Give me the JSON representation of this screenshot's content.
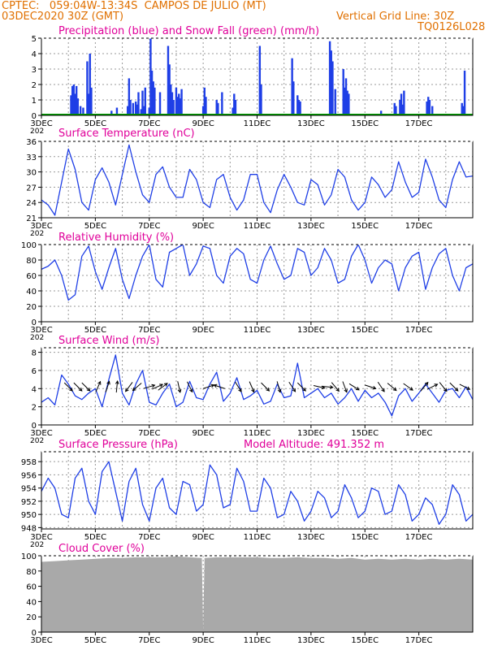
{
  "header": {
    "line1": "CPTEC:   059:04W-13:34S  CAMPOS DE JULIO (MT)",
    "line2": "03DEC2020 30Z (GMT)",
    "grid_note": "Vertical Grid Line: 30Z",
    "code": "TQ0126L028"
  },
  "colors": {
    "header": "#e07000",
    "title": "#e0009a",
    "line": "#1f3fe6",
    "precip": "#1f3fe6",
    "snow": "#00a000",
    "cloud": "#a9a9a9",
    "arrow": "#000000",
    "grid": "#999999"
  },
  "x_axis": {
    "tick_labels": [
      "3DEC",
      "5DEC",
      "7DEC",
      "9DEC",
      "11DEC",
      "13DEC",
      "15DEC",
      "17DEC"
    ],
    "tick_days": [
      0,
      2,
      4,
      6,
      8,
      10,
      12,
      14
    ],
    "cut_label": "202",
    "start_day": 0,
    "end_day": 16
  },
  "chart_data": [
    {
      "id": "precip",
      "type": "bar",
      "title": "Precipitation (blue) and Snow Fall (green) (mm/h)",
      "ylim": [
        0,
        5
      ],
      "yticks": [
        0,
        1,
        2,
        3,
        4,
        5
      ],
      "grid": true,
      "series": [
        {
          "name": "Precipitation",
          "x": [
            1.1,
            1.15,
            1.2,
            1.25,
            1.3,
            1.35,
            1.45,
            1.55,
            1.7,
            1.75,
            1.8,
            1.85,
            2.6,
            2.8,
            3.2,
            3.25,
            3.3,
            3.4,
            3.5,
            3.55,
            3.6,
            3.7,
            3.75,
            3.8,
            3.85,
            4.0,
            4.05,
            4.1,
            4.15,
            4.2,
            4.4,
            4.7,
            4.75,
            4.8,
            4.85,
            4.9,
            5.0,
            5.05,
            5.1,
            5.15,
            5.2,
            6.0,
            6.05,
            6.1,
            6.5,
            6.55,
            6.7,
            7.1,
            7.15,
            7.2,
            8.1,
            8.15,
            9.3,
            9.35,
            9.5,
            9.55,
            9.6,
            10.7,
            10.75,
            10.8,
            10.9,
            11.2,
            11.25,
            11.3,
            11.35,
            11.4,
            12.6,
            13.1,
            13.15,
            13.3,
            13.35,
            13.4,
            13.45,
            14.3,
            14.35,
            14.4,
            14.5,
            15.6,
            15.65,
            15.7
          ],
          "values": [
            1.3,
            1.9,
            2.0,
            1.4,
            1.9,
            1.1,
            0.6,
            0.5,
            3.5,
            1.4,
            4.0,
            1.8,
            0.3,
            0.5,
            0.6,
            2.4,
            1.0,
            0.8,
            0.9,
            0.7,
            1.5,
            0.4,
            1.6,
            0.6,
            1.8,
            0.5,
            5.0,
            2.9,
            2.2,
            1.8,
            1.5,
            4.5,
            3.3,
            2.0,
            1.5,
            1.0,
            1.8,
            1.2,
            1.4,
            1.1,
            1.7,
            0.6,
            1.8,
            1.2,
            1.0,
            0.8,
            1.5,
            0.5,
            1.4,
            1.0,
            4.5,
            2.0,
            3.7,
            2.2,
            1.3,
            1.0,
            0.9,
            4.8,
            4.2,
            3.5,
            1.7,
            3.0,
            1.8,
            2.4,
            1.6,
            1.4,
            0.3,
            0.8,
            0.6,
            1.0,
            1.4,
            0.7,
            1.6,
            0.9,
            1.2,
            1.0,
            0.6,
            0.8,
            0.6,
            2.9
          ]
        },
        {
          "name": "Snow Fall",
          "x": [
            0,
            16
          ],
          "values": [
            0,
            0
          ]
        }
      ]
    },
    {
      "id": "temperature",
      "type": "line",
      "title": "Surface Temperature (nC)",
      "ylim": [
        21,
        36
      ],
      "yticks": [
        21,
        24,
        27,
        30,
        33,
        36
      ],
      "grid": true,
      "series": [
        {
          "x": [
            0,
            0.25,
            0.5,
            0.75,
            1.0,
            1.25,
            1.5,
            1.75,
            2.0,
            2.25,
            2.5,
            2.75,
            3.0,
            3.25,
            3.5,
            3.75,
            4.0,
            4.25,
            4.5,
            4.75,
            5.0,
            5.25,
            5.5,
            5.75,
            6.0,
            6.25,
            6.5,
            6.75,
            7.0,
            7.25,
            7.5,
            7.75,
            8.0,
            8.25,
            8.5,
            8.75,
            9.0,
            9.25,
            9.5,
            9.75,
            10.0,
            10.25,
            10.5,
            10.75,
            11.0,
            11.25,
            11.5,
            11.75,
            12.0,
            12.25,
            12.5,
            12.75,
            13.0,
            13.25,
            13.5,
            13.75,
            14.0,
            14.25,
            14.5,
            14.75,
            15.0,
            15.25,
            15.5,
            15.75,
            16.0
          ],
          "values": [
            24.5,
            23.5,
            21.5,
            28.0,
            34.5,
            30.5,
            24.0,
            22.5,
            28.5,
            30.8,
            28.0,
            23.5,
            29.5,
            35.3,
            30.0,
            25.5,
            24.0,
            29.5,
            31.0,
            27.0,
            25.0,
            25.0,
            30.5,
            28.5,
            24.0,
            23.0,
            28.5,
            29.5,
            25.0,
            22.5,
            24.5,
            29.5,
            29.5,
            24.0,
            22.0,
            26.5,
            29.5,
            27.0,
            24.0,
            23.5,
            28.5,
            27.5,
            23.5,
            25.5,
            30.5,
            29.0,
            24.5,
            22.5,
            24.0,
            29.0,
            27.5,
            25.0,
            26.5,
            32.0,
            28.0,
            25.0,
            26.0,
            32.5,
            29.0,
            24.5,
            23.0,
            28.5,
            32.0,
            29.0,
            29.2
          ]
        }
      ]
    },
    {
      "id": "humidity",
      "type": "line",
      "title": "Relative Humidity (%)",
      "ylim": [
        0,
        100
      ],
      "yticks": [
        0,
        20,
        40,
        60,
        80,
        100
      ],
      "grid": true,
      "series": [
        {
          "x": [
            0,
            0.25,
            0.5,
            0.75,
            1.0,
            1.25,
            1.5,
            1.75,
            2.0,
            2.25,
            2.5,
            2.75,
            3.0,
            3.25,
            3.5,
            3.75,
            4.0,
            4.25,
            4.5,
            4.75,
            5.0,
            5.25,
            5.5,
            5.75,
            6.0,
            6.25,
            6.5,
            6.75,
            7.0,
            7.25,
            7.5,
            7.75,
            8.0,
            8.25,
            8.5,
            8.75,
            9.0,
            9.25,
            9.5,
            9.75,
            10.0,
            10.25,
            10.5,
            10.75,
            11.0,
            11.25,
            11.5,
            11.75,
            12.0,
            12.25,
            12.5,
            12.75,
            13.0,
            13.25,
            13.5,
            13.75,
            14.0,
            14.25,
            14.5,
            14.75,
            15.0,
            15.25,
            15.5,
            15.75,
            16.0
          ],
          "values": [
            68,
            72,
            80,
            60,
            28,
            35,
            85,
            98,
            65,
            42,
            70,
            95,
            55,
            30,
            60,
            85,
            100,
            55,
            45,
            90,
            95,
            100,
            60,
            75,
            98,
            95,
            60,
            50,
            85,
            95,
            88,
            55,
            50,
            80,
            98,
            75,
            55,
            60,
            95,
            90,
            60,
            70,
            95,
            80,
            50,
            55,
            85,
            100,
            80,
            50,
            70,
            80,
            75,
            40,
            70,
            85,
            90,
            42,
            70,
            88,
            95,
            60,
            40,
            70,
            75
          ]
        }
      ]
    },
    {
      "id": "wind",
      "type": "line",
      "title": "Surface Wind (m/s)",
      "ylim": [
        0,
        8.5
      ],
      "yticks": [
        0,
        2,
        4,
        6,
        8
      ],
      "grid": true,
      "series": [
        {
          "x": [
            0,
            0.25,
            0.5,
            0.75,
            1.0,
            1.25,
            1.5,
            1.75,
            2.0,
            2.25,
            2.5,
            2.75,
            3.0,
            3.25,
            3.5,
            3.75,
            4.0,
            4.25,
            4.5,
            4.75,
            5.0,
            5.25,
            5.5,
            5.75,
            6.0,
            6.25,
            6.5,
            6.75,
            7.0,
            7.25,
            7.5,
            7.75,
            8.0,
            8.25,
            8.5,
            8.75,
            9.0,
            9.25,
            9.5,
            9.75,
            10.0,
            10.25,
            10.5,
            10.75,
            11.0,
            11.25,
            11.5,
            11.75,
            12.0,
            12.25,
            12.5,
            12.75,
            13.0,
            13.25,
            13.5,
            13.75,
            14.0,
            14.25,
            14.5,
            14.75,
            15.0,
            15.25,
            15.5,
            15.75,
            16.0
          ],
          "values": [
            2.5,
            3.0,
            2.2,
            5.5,
            4.5,
            3.2,
            2.8,
            3.5,
            4.0,
            2.0,
            5.0,
            7.7,
            3.5,
            2.2,
            4.5,
            6.0,
            2.5,
            2.2,
            3.5,
            4.5,
            2.0,
            2.5,
            4.8,
            3.0,
            2.8,
            4.5,
            5.8,
            2.6,
            3.5,
            5.2,
            2.8,
            3.2,
            3.8,
            2.3,
            2.6,
            4.5,
            3.0,
            3.2,
            6.8,
            3.0,
            3.5,
            4.0,
            3.0,
            3.5,
            2.3,
            3.0,
            4.0,
            2.6,
            3.8,
            3.0,
            3.5,
            2.5,
            1.0,
            3.2,
            4.0,
            2.6,
            3.5,
            4.5,
            3.5,
            2.5,
            3.8,
            4.0,
            3.0,
            4.2,
            2.8
          ]
        }
      ],
      "arrows": {
        "x": [
          1.0,
          1.35,
          1.65,
          2.1,
          2.45,
          2.8,
          3.25,
          3.55,
          4.0,
          4.3,
          4.5,
          5.1,
          5.5,
          6.2,
          6.6,
          7.3,
          7.8,
          8.3,
          8.8,
          9.3,
          9.65,
          10.3,
          10.6,
          10.9,
          11.25,
          11.6,
          12.2,
          12.6,
          13.0,
          13.6,
          14.2,
          14.5,
          14.9,
          15.3,
          15.7
        ],
        "u": [
          0.7,
          0.6,
          0.5,
          0.4,
          0.3,
          0.1,
          -0.6,
          -0.7,
          1.0,
          0.9,
          0.8,
          0.2,
          0.4,
          0.9,
          -0.6,
          0.5,
          0.3,
          0.5,
          0.2,
          0.4,
          0.5,
          0.9,
          1.0,
          0.5,
          0.3,
          0.8,
          0.9,
          0.4,
          0.6,
          0.7,
          0.5,
          0.6,
          0.4,
          0.5,
          0.8
        ],
        "v": [
          -0.7,
          -0.6,
          -0.5,
          0.9,
          0.9,
          1.0,
          -0.8,
          -0.6,
          0.3,
          0.4,
          0.6,
          -0.9,
          -0.8,
          0.3,
          0.2,
          -0.8,
          -0.7,
          -0.5,
          -0.7,
          -0.6,
          -0.5,
          -0.2,
          -0.1,
          -0.6,
          -0.8,
          -0.5,
          -0.3,
          -0.6,
          -0.5,
          -0.5,
          0.6,
          0.3,
          -0.5,
          -0.5,
          -0.4
        ]
      }
    },
    {
      "id": "pressure",
      "type": "line",
      "title": "Surface Pressure (hPa)",
      "annotation": "Model Altitude: 491.352  m",
      "ylim": [
        947.8,
        959.5
      ],
      "yticks": [
        948,
        950,
        952,
        954,
        956,
        958
      ],
      "grid": true,
      "series": [
        {
          "x": [
            0,
            0.25,
            0.5,
            0.75,
            1.0,
            1.25,
            1.5,
            1.75,
            2.0,
            2.25,
            2.5,
            2.75,
            3.0,
            3.25,
            3.5,
            3.75,
            4.0,
            4.25,
            4.5,
            4.75,
            5.0,
            5.25,
            5.5,
            5.75,
            6.0,
            6.25,
            6.5,
            6.75,
            7.0,
            7.25,
            7.5,
            7.75,
            8.0,
            8.25,
            8.5,
            8.75,
            9.0,
            9.25,
            9.5,
            9.75,
            10.0,
            10.25,
            10.5,
            10.75,
            11.0,
            11.25,
            11.5,
            11.75,
            12.0,
            12.25,
            12.5,
            12.75,
            13.0,
            13.25,
            13.5,
            13.75,
            14.0,
            14.25,
            14.5,
            14.75,
            15.0,
            15.25,
            15.5,
            15.75,
            16.0
          ],
          "values": [
            953.5,
            955.5,
            954.0,
            950.0,
            949.5,
            955.5,
            957.0,
            952.0,
            950.0,
            956.5,
            958.0,
            953.5,
            949.0,
            955.0,
            957.0,
            951.5,
            949.0,
            954.0,
            955.5,
            951.0,
            950.0,
            955.0,
            954.5,
            950.5,
            951.5,
            957.5,
            956.0,
            951.0,
            951.5,
            957.0,
            955.0,
            950.5,
            950.5,
            955.5,
            954.0,
            949.5,
            950.0,
            953.5,
            952.0,
            949.0,
            950.5,
            953.5,
            952.5,
            949.5,
            950.5,
            954.5,
            952.5,
            949.5,
            950.5,
            954.0,
            953.5,
            950.0,
            950.5,
            954.5,
            953.0,
            949.0,
            950.0,
            952.5,
            951.5,
            948.5,
            950.0,
            954.5,
            953.0,
            949.0,
            950.0
          ]
        }
      ]
    },
    {
      "id": "cloud",
      "type": "area",
      "title": "Cloud Cover (%)",
      "ylim": [
        0,
        100
      ],
      "yticks": [
        0,
        20,
        40,
        60,
        80,
        100
      ],
      "grid": true,
      "series": [
        {
          "x": [
            0,
            0.5,
            1.0,
            1.5,
            2.0,
            2.5,
            3.0,
            3.5,
            4.0,
            4.5,
            5.0,
            5.5,
            5.95,
            6.0,
            6.05,
            6.5,
            7.0,
            7.5,
            8.0,
            8.5,
            9.0,
            9.5,
            10.0,
            10.5,
            11.0,
            11.5,
            12.0,
            12.5,
            13.0,
            13.5,
            14.0,
            14.5,
            15.0,
            15.5,
            16.0
          ],
          "values": [
            92,
            93,
            94,
            95,
            96,
            97,
            97,
            98,
            98,
            98,
            99,
            98,
            97,
            2,
            97,
            98,
            98,
            98,
            98,
            97,
            97,
            98,
            97,
            97,
            96,
            97,
            95,
            96,
            95,
            96,
            95,
            96,
            95,
            96,
            95
          ]
        }
      ]
    }
  ]
}
